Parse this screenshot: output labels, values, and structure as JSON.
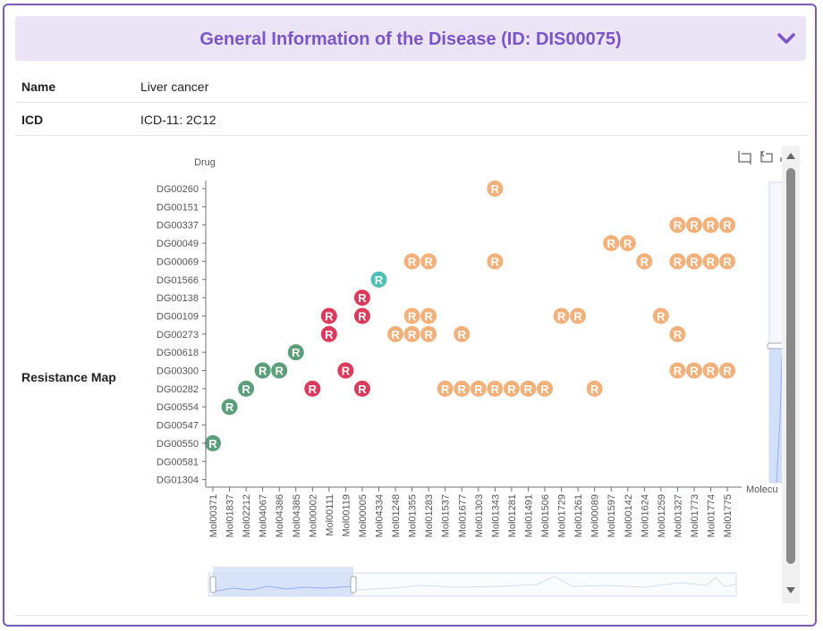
{
  "header": {
    "title": "General Information of the Disease (ID: DIS00075)"
  },
  "info": {
    "name_label": "Name",
    "name_value": "Liver cancer",
    "icd_label": "ICD",
    "icd_value": "ICD-11: 2C12",
    "map_label": "Resistance Map"
  },
  "colors": {
    "accent": "#7b55c7",
    "header_bg": "#ebe4f7",
    "green": "#5b9e7a",
    "red": "#dc3a5b",
    "orange": "#f2b07a",
    "teal": "#4fc0b4"
  },
  "icons": [
    "chevron-down-icon",
    "crop-icon",
    "undo-icon",
    "restore-icon",
    "scroll-up-icon",
    "scroll-down-icon"
  ],
  "chart_data": {
    "type": "scatter",
    "ylabel": "Drug",
    "xlabel": "Molecu",
    "marker_label": "R",
    "y_categories": [
      "DG00260",
      "DG00151",
      "DG00337",
      "DG00049",
      "DG00069",
      "DG01566",
      "DG00138",
      "DG00109",
      "DG00273",
      "DG00618",
      "DG00300",
      "DG00282",
      "DG00554",
      "DG00547",
      "DG00550",
      "DG00581",
      "DG01304"
    ],
    "x_categories": [
      "Mol00371",
      "Mol01837",
      "Mol02212",
      "Mol04067",
      "Mol04386",
      "Mol04385",
      "Mol00002",
      "Mol00111",
      "Mol00119",
      "Mol00005",
      "Mol04334",
      "Mol01248",
      "Mol01355",
      "Mol01283",
      "Mol01537",
      "Mol01677",
      "Mol01303",
      "Mol01343",
      "Mol01281",
      "Mol01491",
      "Mol01506",
      "Mol01729",
      "Mol01261",
      "Mol00089",
      "Mol01597",
      "Mol00142",
      "Mol01624",
      "Mol01259",
      "Mol01327",
      "Mol01773",
      "Mol01774",
      "Mol01775"
    ],
    "points": [
      {
        "x": 0,
        "y": 14,
        "c": "green"
      },
      {
        "x": 1,
        "y": 12,
        "c": "green"
      },
      {
        "x": 2,
        "y": 11,
        "c": "green"
      },
      {
        "x": 3,
        "y": 10,
        "c": "green"
      },
      {
        "x": 4,
        "y": 10,
        "c": "green"
      },
      {
        "x": 5,
        "y": 9,
        "c": "green"
      },
      {
        "x": 6,
        "y": 11,
        "c": "red"
      },
      {
        "x": 7,
        "y": 7,
        "c": "red"
      },
      {
        "x": 7,
        "y": 8,
        "c": "red"
      },
      {
        "x": 8,
        "y": 10,
        "c": "red"
      },
      {
        "x": 9,
        "y": 6,
        "c": "red"
      },
      {
        "x": 9,
        "y": 7,
        "c": "red"
      },
      {
        "x": 9,
        "y": 11,
        "c": "red"
      },
      {
        "x": 10,
        "y": 5,
        "c": "teal"
      },
      {
        "x": 11,
        "y": 8,
        "c": "orange"
      },
      {
        "x": 12,
        "y": 4,
        "c": "orange"
      },
      {
        "x": 12,
        "y": 7,
        "c": "orange"
      },
      {
        "x": 12,
        "y": 8,
        "c": "orange"
      },
      {
        "x": 13,
        "y": 4,
        "c": "orange"
      },
      {
        "x": 13,
        "y": 7,
        "c": "orange"
      },
      {
        "x": 13,
        "y": 8,
        "c": "orange"
      },
      {
        "x": 14,
        "y": 11,
        "c": "orange"
      },
      {
        "x": 15,
        "y": 8,
        "c": "orange"
      },
      {
        "x": 15,
        "y": 11,
        "c": "orange"
      },
      {
        "x": 16,
        "y": 11,
        "c": "orange"
      },
      {
        "x": 17,
        "y": 0,
        "c": "orange"
      },
      {
        "x": 17,
        "y": 4,
        "c": "orange"
      },
      {
        "x": 17,
        "y": 11,
        "c": "orange"
      },
      {
        "x": 18,
        "y": 11,
        "c": "orange"
      },
      {
        "x": 19,
        "y": 11,
        "c": "orange"
      },
      {
        "x": 20,
        "y": 11,
        "c": "orange"
      },
      {
        "x": 21,
        "y": 7,
        "c": "orange"
      },
      {
        "x": 22,
        "y": 7,
        "c": "orange"
      },
      {
        "x": 23,
        "y": 11,
        "c": "orange"
      },
      {
        "x": 24,
        "y": 3,
        "c": "orange"
      },
      {
        "x": 25,
        "y": 3,
        "c": "orange"
      },
      {
        "x": 26,
        "y": 4,
        "c": "orange"
      },
      {
        "x": 27,
        "y": 7,
        "c": "orange"
      },
      {
        "x": 28,
        "y": 2,
        "c": "orange"
      },
      {
        "x": 28,
        "y": 4,
        "c": "orange"
      },
      {
        "x": 28,
        "y": 8,
        "c": "orange"
      },
      {
        "x": 28,
        "y": 10,
        "c": "orange"
      },
      {
        "x": 29,
        "y": 2,
        "c": "orange"
      },
      {
        "x": 29,
        "y": 4,
        "c": "orange"
      },
      {
        "x": 29,
        "y": 10,
        "c": "orange"
      },
      {
        "x": 30,
        "y": 2,
        "c": "orange"
      },
      {
        "x": 30,
        "y": 4,
        "c": "orange"
      },
      {
        "x": 30,
        "y": 10,
        "c": "orange"
      },
      {
        "x": 31,
        "y": 2,
        "c": "orange"
      },
      {
        "x": 31,
        "y": 4,
        "c": "orange"
      },
      {
        "x": 31,
        "y": 10,
        "c": "orange"
      }
    ],
    "grid": false,
    "legend": "none"
  }
}
